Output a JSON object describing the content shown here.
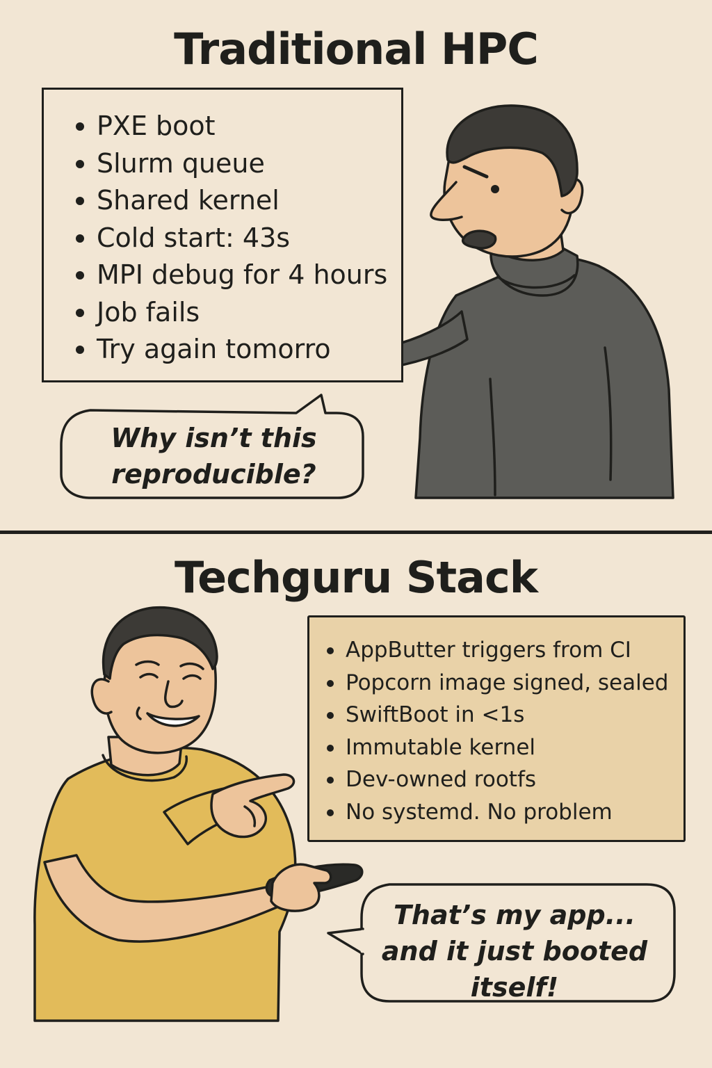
{
  "top_panel": {
    "title": "Traditional HPC",
    "list": [
      "PXE boot",
      "Slurm queue",
      "Shared kernel",
      "Cold start: 43s",
      "MPI debug for 4 hours",
      "Job fails",
      "Try again tomorro"
    ],
    "speech": "Why isn’t this reproducible?"
  },
  "bottom_panel": {
    "title": "Techguru Stack",
    "list": [
      "AppButter triggers from CI",
      "Popcorn image signed, sealed",
      "SwiftBoot in <1s",
      "Immutable kernel",
      "Dev-owned rootfs",
      "No systemd. No problem"
    ],
    "speech": "That’s my app... and it just booted itself!"
  },
  "colors": {
    "background": "#f2e6d4",
    "ink": "#1f1f1c",
    "skin": "#edc49b",
    "hair": "#3c3a36",
    "sweater": "#5c5c58",
    "tshirt": "#e2bb5a",
    "note_box": "#e9d2a8"
  },
  "icons": {
    "top_character": "frustrated-man-pointing",
    "bottom_character": "smiling-man-pointing-holding-phone"
  }
}
